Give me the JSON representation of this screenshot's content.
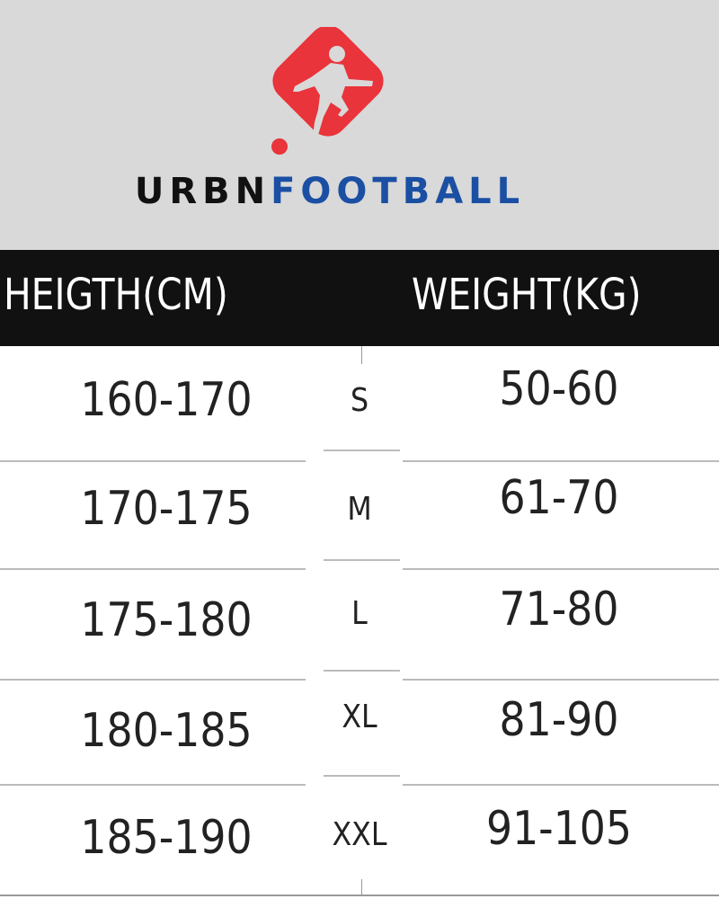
{
  "brand": {
    "part1": "URBN",
    "part2": "FOOTBALL",
    "colors": {
      "logo_red": "#e8343a",
      "part1": "#111111",
      "part2": "#1a4fa3"
    }
  },
  "table": {
    "headers": {
      "height": "HEIGTH(CM)",
      "weight": "WEIGHT(KG)"
    },
    "rows": [
      {
        "height": "160-170",
        "size": "S",
        "weight": "50-60"
      },
      {
        "height": "170-175",
        "size": "M",
        "weight": "61-70"
      },
      {
        "height": "175-180",
        "size": "L",
        "weight": "71-80"
      },
      {
        "height": "180-185",
        "size": "XL",
        "weight": "81-90"
      },
      {
        "height": "185-190",
        "size": "XXL",
        "weight": "91-105"
      }
    ]
  }
}
